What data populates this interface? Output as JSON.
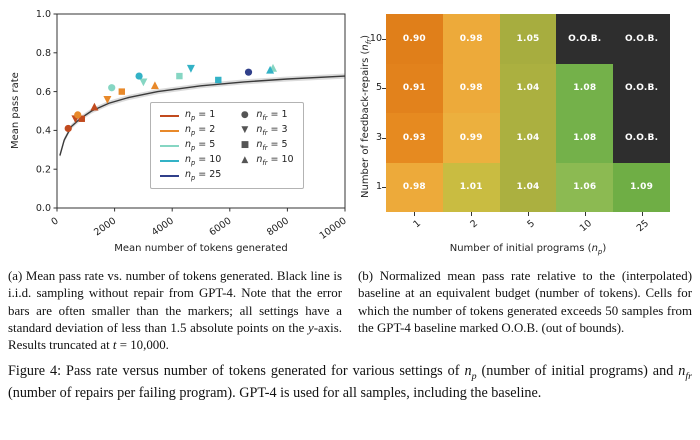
{
  "figure": {
    "caption_a_html": "(a) Mean pass rate vs. number of tokens generated. Black line is i.i.d. sampling without repair from GPT-4. Note that the error bars are often smaller than the markers; all settings have a standard deviation of less than 1.5 absolute points on the <i>y</i>-axis. Results truncated at <i>t</i> = 10,000.",
    "caption_b_html": "(b) Normalized mean pass rate relative to the (interpolated) baseline at an equivalent budget (number of tokens). Cells for which the number of tokens generated exceeds 50 samples from the GPT-4 baseline marked O.O.B. (out of bounds).",
    "caption_main_html": "Figure 4: Pass rate versus number of tokens generated for various settings of <i>n</i><sub><i>p</i></sub> (number of initial programs) and <i>n</i><sub><i>fr</i></sub> (number of repairs per failing program). GPT-4 is used for all samples, including the baseline."
  },
  "chart_data": [
    {
      "type": "scatter",
      "xlabel": "Mean number of tokens generated",
      "ylabel": "Mean pass rate",
      "xlim": [
        0,
        10000
      ],
      "ylim": [
        0.0,
        1.0
      ],
      "xticks": [
        0,
        2000,
        4000,
        6000,
        8000,
        10000
      ],
      "yticks": [
        0.0,
        0.2,
        0.4,
        0.6,
        0.8,
        1.0
      ],
      "baseline_line": {
        "description": "i.i.d. sampling without repair from GPT-4",
        "color": "#3a3a3a",
        "band": 0.013,
        "points": [
          [
            100,
            0.27
          ],
          [
            250,
            0.35
          ],
          [
            500,
            0.42
          ],
          [
            800,
            0.46
          ],
          [
            1200,
            0.5
          ],
          [
            1800,
            0.54
          ],
          [
            2500,
            0.57
          ],
          [
            3500,
            0.6
          ],
          [
            5000,
            0.63
          ],
          [
            6500,
            0.65
          ],
          [
            8000,
            0.665
          ],
          [
            10000,
            0.68
          ]
        ]
      },
      "series": [
        {
          "name": "np=1",
          "label_html": "<i>n</i><sub><i>p</i></sub> = 1",
          "color": "#c14a1e",
          "points": [
            {
              "x": 390,
              "y": 0.41,
              "marker": "circle",
              "nfr": 1
            },
            {
              "x": 640,
              "y": 0.46,
              "marker": "triangle-down",
              "nfr": 3
            },
            {
              "x": 860,
              "y": 0.46,
              "marker": "square",
              "nfr": 5
            },
            {
              "x": 1300,
              "y": 0.52,
              "marker": "triangle-up",
              "nfr": 10
            }
          ]
        },
        {
          "name": "np=2",
          "label_html": "<i>n</i><sub><i>p</i></sub> = 2",
          "color": "#e8892a",
          "points": [
            {
              "x": 720,
              "y": 0.48,
              "marker": "circle",
              "nfr": 1
            },
            {
              "x": 1750,
              "y": 0.56,
              "marker": "triangle-down",
              "nfr": 3
            },
            {
              "x": 2250,
              "y": 0.6,
              "marker": "square",
              "nfr": 5
            },
            {
              "x": 3400,
              "y": 0.63,
              "marker": "triangle-up",
              "nfr": 10
            }
          ]
        },
        {
          "name": "np=5",
          "label_html": "<i>n</i><sub><i>p</i></sub> = 5",
          "color": "#86d6c3",
          "points": [
            {
              "x": 1900,
              "y": 0.62,
              "marker": "circle",
              "nfr": 1
            },
            {
              "x": 3000,
              "y": 0.65,
              "marker": "triangle-down",
              "nfr": 3
            },
            {
              "x": 4250,
              "y": 0.68,
              "marker": "square",
              "nfr": 5
            },
            {
              "x": 7500,
              "y": 0.72,
              "marker": "triangle-up",
              "nfr": 10
            }
          ]
        },
        {
          "name": "np=10",
          "label_html": "<i>n</i><sub><i>p</i></sub> = 10",
          "color": "#33b2c6",
          "points": [
            {
              "x": 2850,
              "y": 0.68,
              "marker": "circle",
              "nfr": 1
            },
            {
              "x": 4650,
              "y": 0.72,
              "marker": "triangle-down",
              "nfr": 3
            },
            {
              "x": 5600,
              "y": 0.66,
              "marker": "square",
              "nfr": 5
            },
            {
              "x": 7400,
              "y": 0.71,
              "marker": "triangle-up",
              "nfr": 10
            }
          ]
        },
        {
          "name": "np=25",
          "label_html": "<i>n</i><sub><i>p</i></sub> = 25",
          "color": "#303f8a",
          "points": [
            {
              "x": 6650,
              "y": 0.7,
              "marker": "circle",
              "nfr": 1
            }
          ]
        }
      ],
      "marker_legend": [
        {
          "marker": "circle",
          "label_html": "<i>n</i><sub><i>fr</i></sub> = 1"
        },
        {
          "marker": "triangle-down",
          "label_html": "<i>n</i><sub><i>fr</i></sub> = 3"
        },
        {
          "marker": "square",
          "label_html": "<i>n</i><sub><i>fr</i></sub> = 5"
        },
        {
          "marker": "triangle-up",
          "label_html": "<i>n</i><sub><i>fr</i></sub> = 10"
        }
      ]
    },
    {
      "type": "heatmap",
      "xlabel_html": "Number of initial programs (<i>n</i><sub><i>p</i></sub>)",
      "ylabel_html": "Number of feedback-repairs (<i>n</i><sub><i>fr</i></sub>)",
      "x_categories": [
        "1",
        "2",
        "5",
        "10",
        "25"
      ],
      "y_categories_top_to_bottom": [
        "10",
        "5",
        "3",
        "1"
      ],
      "oob_label": "O.O.B.",
      "rows": [
        {
          "nfr": "10",
          "cells": [
            {
              "value": "0.90",
              "color": "#e07f1a"
            },
            {
              "value": "0.98",
              "color": "#edaa3a"
            },
            {
              "value": "1.05",
              "color": "#a7ad3f"
            },
            {
              "value": "O.O.B.",
              "color": "#2e2e2e"
            },
            {
              "value": "O.O.B.",
              "color": "#2e2e2e"
            }
          ]
        },
        {
          "nfr": "5",
          "cells": [
            {
              "value": "0.91",
              "color": "#e2821c"
            },
            {
              "value": "0.98",
              "color": "#edaa3a"
            },
            {
              "value": "1.04",
              "color": "#abb040"
            },
            {
              "value": "1.08",
              "color": "#74b14a"
            },
            {
              "value": "O.O.B.",
              "color": "#2e2e2e"
            }
          ]
        },
        {
          "nfr": "3",
          "cells": [
            {
              "value": "0.93",
              "color": "#e68a20"
            },
            {
              "value": "0.99",
              "color": "#ecb03e"
            },
            {
              "value": "1.04",
              "color": "#abb040"
            },
            {
              "value": "1.08",
              "color": "#74b14a"
            },
            {
              "value": "O.O.B.",
              "color": "#2e2e2e"
            }
          ]
        },
        {
          "nfr": "1",
          "cells": [
            {
              "value": "0.98",
              "color": "#edaa3a"
            },
            {
              "value": "1.01",
              "color": "#c9bc41"
            },
            {
              "value": "1.04",
              "color": "#abb040"
            },
            {
              "value": "1.06",
              "color": "#8cba52"
            },
            {
              "value": "1.09",
              "color": "#6fae45"
            }
          ]
        }
      ]
    }
  ]
}
